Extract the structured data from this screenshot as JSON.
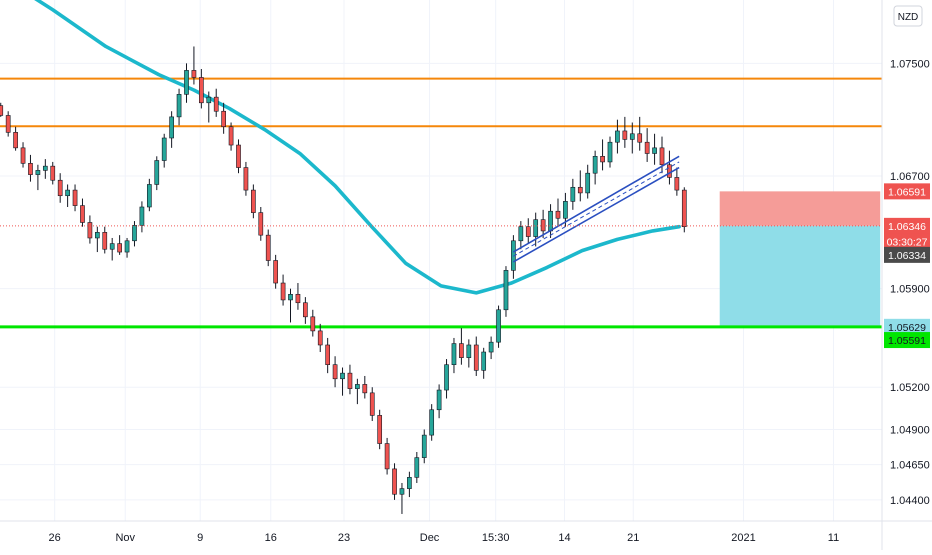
{
  "chart_data": {
    "type": "candlestick",
    "currency_label": "NZD",
    "colors": {
      "up": "#26a69a",
      "down": "#ef5350",
      "wick": "#131722",
      "ma": "#1cb8cc",
      "resistance": "#f5870a",
      "support": "#00e600",
      "channel": "#2a4fc0",
      "stop_zone": "#f59c98",
      "target_zone": "#8fdde8",
      "last_price": "#ef5350"
    },
    "y_axis": {
      "range": [
        1.0425,
        1.0795
      ],
      "tick_labels": [
        "1.07500",
        "1.06700",
        "1.05900",
        "1.05200",
        "1.04900",
        "1.04650",
        "1.04400"
      ]
    },
    "x_axis": {
      "tick_labels": [
        "26",
        "Nov",
        "9",
        "16",
        "23",
        "Dec",
        "15:30",
        "14",
        "21",
        "2021",
        "11"
      ]
    },
    "price_lines": [
      {
        "label": "1.07392",
        "value": 1.07392,
        "kind": "resistance"
      },
      {
        "label": "1.07053",
        "value": 1.07053,
        "kind": "resistance"
      },
      {
        "label": "1.05629",
        "value": 1.05629,
        "kind": "support"
      }
    ],
    "price_tags": [
      {
        "label": "1.06591",
        "value": 1.06591,
        "bg": "#ef5350",
        "fg": "#ffffff"
      },
      {
        "label": "1.06346",
        "value": 1.06346,
        "bg": "#ef5350",
        "fg": "#ffffff"
      },
      {
        "label": "03:30:27",
        "value": 1.06235,
        "bg": "#ef5350",
        "fg": "#ffffff"
      },
      {
        "label": "1.06334",
        "value": 1.0614,
        "bg": "#4a4a4a",
        "fg": "#ffffff"
      },
      {
        "label": "1.05629",
        "value": 1.05629,
        "bg": "#8fdde8",
        "fg": "#131722"
      },
      {
        "label": "1.05591",
        "value": 1.05535,
        "bg": "#00e600",
        "fg": "#131722"
      }
    ],
    "last_price": 1.06346,
    "position": {
      "stop": 1.06591,
      "entry": 1.06346,
      "target": 1.05629
    },
    "moving_average": [
      [
        0,
        1.0812
      ],
      [
        0.06,
        1.0788
      ],
      [
        0.12,
        1.0762
      ],
      [
        0.18,
        1.0742
      ],
      [
        0.22,
        1.0731
      ],
      [
        0.26,
        1.0718
      ],
      [
        0.3,
        1.0703
      ],
      [
        0.34,
        1.0686
      ],
      [
        0.38,
        1.0663
      ],
      [
        0.42,
        1.0635
      ],
      [
        0.46,
        1.0608
      ],
      [
        0.5,
        1.0592
      ],
      [
        0.54,
        1.0587
      ],
      [
        0.58,
        1.0594
      ],
      [
        0.62,
        1.0605
      ],
      [
        0.66,
        1.0617
      ],
      [
        0.7,
        1.0625
      ],
      [
        0.74,
        1.0631
      ],
      [
        0.77,
        1.0634
      ]
    ],
    "channel": {
      "x_start": 0.582,
      "x_end": 0.77,
      "upper": [
        1.0616,
        1.0684
      ],
      "middle": [
        1.0613,
        1.068
      ],
      "lower": [
        1.0609,
        1.0676
      ]
    },
    "candles": [
      [
        1.072,
        1.0722,
        1.0712,
        1.0713
      ],
      [
        1.0713,
        1.0716,
        1.0698,
        1.0701
      ],
      [
        1.0701,
        1.0705,
        1.0688,
        1.069
      ],
      [
        1.069,
        1.0694,
        1.0676,
        1.0679
      ],
      [
        1.0679,
        1.0685,
        1.0666,
        1.0671
      ],
      [
        1.0671,
        1.0678,
        1.066,
        1.0674
      ],
      [
        1.0674,
        1.0682,
        1.0668,
        1.0677
      ],
      [
        1.0677,
        1.068,
        1.0664,
        1.0667
      ],
      [
        1.0667,
        1.0672,
        1.0651,
        1.0656
      ],
      [
        1.0656,
        1.0664,
        1.0648,
        1.066
      ],
      [
        1.066,
        1.0664,
        1.0645,
        1.0649
      ],
      [
        1.0649,
        1.0654,
        1.0634,
        1.0637
      ],
      [
        1.0637,
        1.0642,
        1.0622,
        1.0626
      ],
      [
        1.0626,
        1.0634,
        1.0616,
        1.063
      ],
      [
        1.063,
        1.0634,
        1.0615,
        1.0618
      ],
      [
        1.0618,
        1.0626,
        1.061,
        1.0622
      ],
      [
        1.0622,
        1.0628,
        1.0614,
        1.0616
      ],
      [
        1.0616,
        1.0626,
        1.0612,
        1.0624
      ],
      [
        1.0624,
        1.0638,
        1.062,
        1.0635
      ],
      [
        1.0635,
        1.0652,
        1.063,
        1.0648
      ],
      [
        1.0648,
        1.0668,
        1.0645,
        1.0664
      ],
      [
        1.0664,
        1.0684,
        1.066,
        1.0681
      ],
      [
        1.0681,
        1.07,
        1.0676,
        1.0697
      ],
      [
        1.0697,
        1.0716,
        1.069,
        1.0712
      ],
      [
        1.0712,
        1.0732,
        1.0706,
        1.0728
      ],
      [
        1.0728,
        1.075,
        1.0722,
        1.0745
      ],
      [
        1.0745,
        1.0762,
        1.0735,
        1.074
      ],
      [
        1.074,
        1.0746,
        1.0718,
        1.0722
      ],
      [
        1.0722,
        1.073,
        1.0708,
        1.0726
      ],
      [
        1.0726,
        1.0732,
        1.0712,
        1.0716
      ],
      [
        1.0716,
        1.0722,
        1.07,
        1.0705
      ],
      [
        1.0705,
        1.0708,
        1.0688,
        1.0692
      ],
      [
        1.0692,
        1.0696,
        1.0672,
        1.0676
      ],
      [
        1.0676,
        1.068,
        1.0656,
        1.066
      ],
      [
        1.066,
        1.0664,
        1.064,
        1.0644
      ],
      [
        1.0644,
        1.0648,
        1.0624,
        1.0628
      ],
      [
        1.0628,
        1.0632,
        1.0606,
        1.061
      ],
      [
        1.061,
        1.0614,
        1.059,
        1.0594
      ],
      [
        1.0594,
        1.06,
        1.0578,
        1.0582
      ],
      [
        1.0582,
        1.059,
        1.0566,
        1.0586
      ],
      [
        1.0586,
        1.0594,
        1.0575,
        1.058
      ],
      [
        1.058,
        1.0584,
        1.0565,
        1.057
      ],
      [
        1.057,
        1.0575,
        1.0556,
        1.056
      ],
      [
        1.056,
        1.0565,
        1.0545,
        1.055
      ],
      [
        1.055,
        1.0555,
        1.053,
        1.0536
      ],
      [
        1.0536,
        1.0542,
        1.052,
        1.0526
      ],
      [
        1.0526,
        1.0534,
        1.0514,
        1.053
      ],
      [
        1.053,
        1.0536,
        1.0515,
        1.0519
      ],
      [
        1.0519,
        1.0526,
        1.0508,
        1.0522
      ],
      [
        1.0522,
        1.0528,
        1.0512,
        1.0516
      ],
      [
        1.0516,
        1.052,
        1.0496,
        1.05
      ],
      [
        1.05,
        1.0504,
        1.0476,
        1.048
      ],
      [
        1.048,
        1.0484,
        1.0458,
        1.0462
      ],
      [
        1.0462,
        1.0466,
        1.044,
        1.0444
      ],
      [
        1.0444,
        1.0452,
        1.043,
        1.0448
      ],
      [
        1.0448,
        1.046,
        1.0442,
        1.0456
      ],
      [
        1.0456,
        1.0474,
        1.0452,
        1.047
      ],
      [
        1.047,
        1.049,
        1.0466,
        1.0486
      ],
      [
        1.0486,
        1.0508,
        1.0482,
        1.0504
      ],
      [
        1.0504,
        1.0522,
        1.0498,
        1.0518
      ],
      [
        1.0518,
        1.054,
        1.0512,
        1.0536
      ],
      [
        1.0536,
        1.0555,
        1.053,
        1.0551
      ],
      [
        1.0551,
        1.0562,
        1.0536,
        1.0541
      ],
      [
        1.0541,
        1.0554,
        1.0534,
        1.055
      ],
      [
        1.055,
        1.0556,
        1.0528,
        1.0532
      ],
      [
        1.0532,
        1.0548,
        1.0526,
        1.0545
      ],
      [
        1.0545,
        1.0556,
        1.054,
        1.0552
      ],
      [
        1.0552,
        1.0578,
        1.0548,
        1.0575
      ],
      [
        1.0575,
        1.0606,
        1.057,
        1.0603
      ],
      [
        1.0603,
        1.0628,
        1.0597,
        1.0624
      ],
      [
        1.0624,
        1.0638,
        1.0618,
        1.0634
      ],
      [
        1.0634,
        1.064,
        1.0622,
        1.0627
      ],
      [
        1.0627,
        1.0644,
        1.062,
        1.0639
      ],
      [
        1.0639,
        1.0646,
        1.0626,
        1.0631
      ],
      [
        1.0631,
        1.065,
        1.0626,
        1.0645
      ],
      [
        1.0645,
        1.0654,
        1.0634,
        1.064
      ],
      [
        1.064,
        1.0658,
        1.0634,
        1.0652
      ],
      [
        1.0652,
        1.0668,
        1.0646,
        1.0662
      ],
      [
        1.0662,
        1.0674,
        1.0652,
        1.0658
      ],
      [
        1.0658,
        1.0678,
        1.0654,
        1.0672
      ],
      [
        1.0672,
        1.0688,
        1.0664,
        1.0684
      ],
      [
        1.0684,
        1.0696,
        1.0674,
        1.068
      ],
      [
        1.068,
        1.0698,
        1.0676,
        1.0694
      ],
      [
        1.0694,
        1.071,
        1.0686,
        1.0702
      ],
      [
        1.0702,
        1.0712,
        1.069,
        1.0696
      ],
      [
        1.0696,
        1.0708,
        1.0686,
        1.07
      ],
      [
        1.07,
        1.0712,
        1.0688,
        1.0694
      ],
      [
        1.0694,
        1.0704,
        1.068,
        1.0686
      ],
      [
        1.0686,
        1.07,
        1.0678,
        1.069
      ],
      [
        1.069,
        1.0698,
        1.0672,
        1.0678
      ],
      [
        1.0678,
        1.0688,
        1.0664,
        1.0669
      ],
      [
        1.0669,
        1.0676,
        1.0656,
        1.066
      ],
      [
        1.066,
        1.0662,
        1.063,
        1.0634
      ]
    ]
  }
}
